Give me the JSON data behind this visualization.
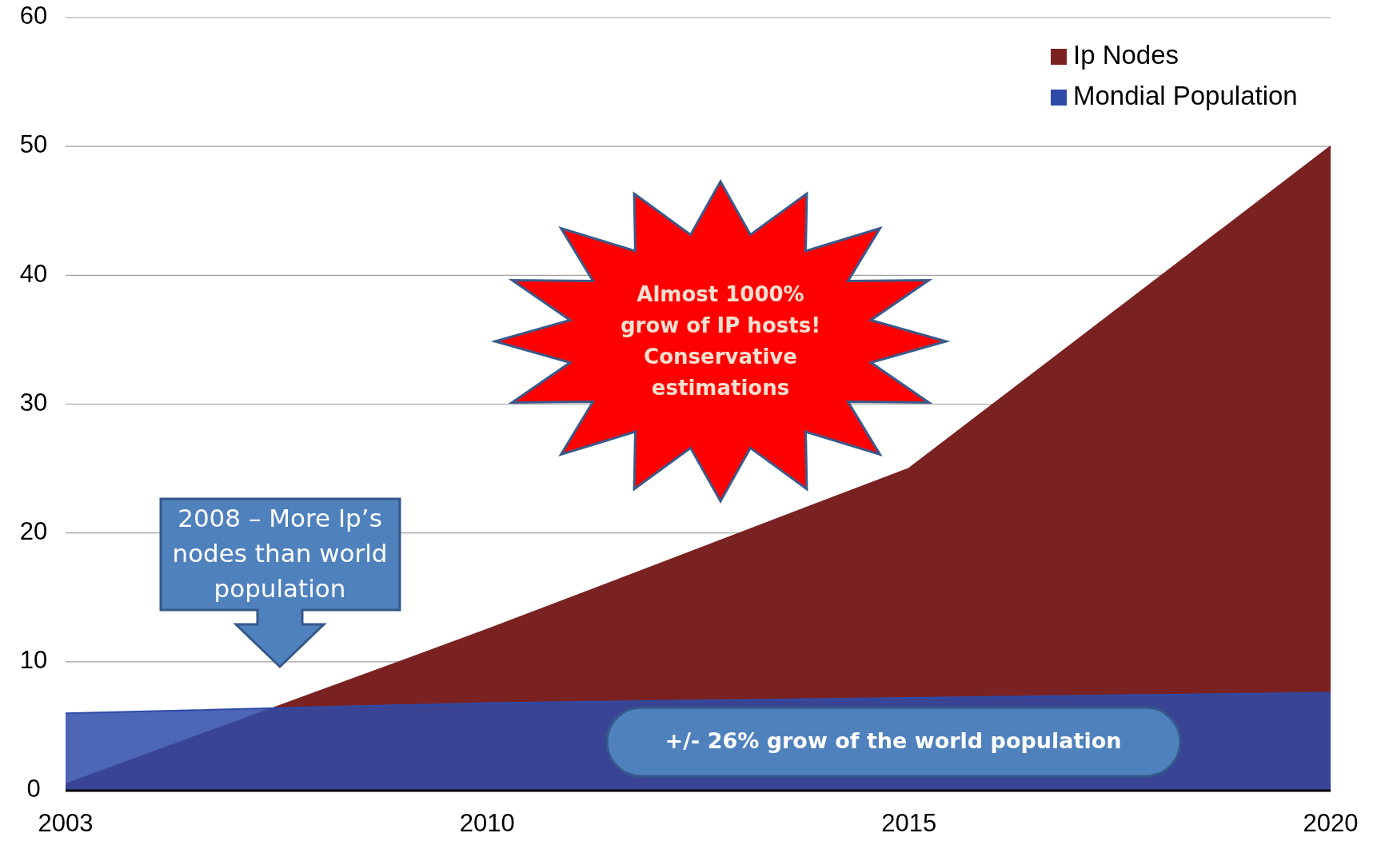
{
  "chart_data": {
    "type": "area",
    "categories": [
      "2003",
      "2010",
      "2015",
      "2020"
    ],
    "series": [
      {
        "name": "Ip Nodes",
        "color": "#7a2222",
        "values": [
          0.5,
          12.5,
          25,
          50
        ]
      },
      {
        "name": "Mondial Population",
        "color": "#2e4ba8",
        "values": [
          6.0,
          6.8,
          7.2,
          7.6
        ]
      }
    ],
    "ylim": [
      0,
      60
    ],
    "yticks": [
      0,
      10,
      20,
      30,
      40,
      50,
      60
    ],
    "grid": "y",
    "legend": "top right",
    "annotations": [
      "2008 – More Ip’s\nnodes than world\npopulation",
      "Almost 1000%\ngrow of IP hosts!\nConservative\nestimations",
      "+/- 26% grow of the world population"
    ]
  }
}
